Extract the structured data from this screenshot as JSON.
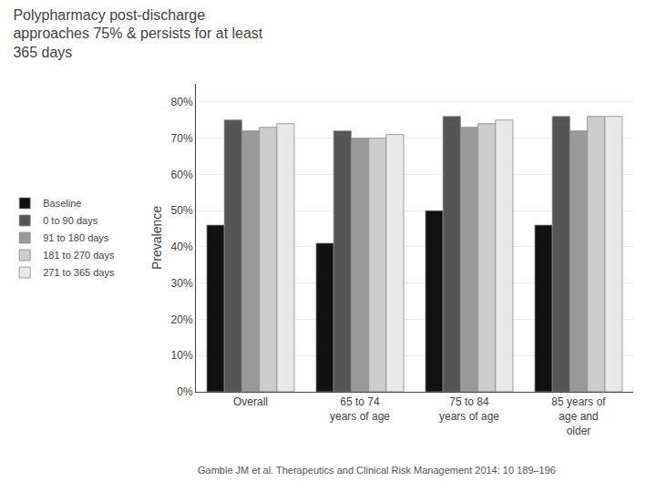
{
  "chart_data": {
    "type": "bar",
    "title": "Polypharmacy post-discharge\napproaches 75% & persists for at least\n365 days",
    "annotations": [
      "Gamble JM et al. Therapeutics and Clinical Risk Management 2014: 10 189–196"
    ],
    "ylabel": "Prevalence",
    "categories": [
      "Overall",
      "65 to 74\nyears of age",
      "75 to 84\nyears of age",
      "85 years of\nage and\nolder"
    ],
    "series": [
      {
        "name": "Baseline",
        "color": "#111111",
        "values": [
          46,
          41,
          50,
          46
        ]
      },
      {
        "name": "0 to 90 days",
        "color": "#555555",
        "values": [
          75,
          72,
          76,
          76
        ]
      },
      {
        "name": "91 to 180 days",
        "color": "#999999",
        "values": [
          72,
          70,
          73,
          72
        ]
      },
      {
        "name": "181 to 270 days",
        "color": "#cccccc",
        "values": [
          73,
          70,
          74,
          76
        ]
      },
      {
        "name": "271 to 365 days",
        "color": "#e8e8e8",
        "values": [
          74,
          71,
          75,
          76
        ]
      }
    ],
    "ylim": [
      0,
      85
    ],
    "yticks": [
      {
        "value": 0,
        "label": "0%"
      },
      {
        "value": 10,
        "label": "10%"
      },
      {
        "value": 20,
        "label": "20%"
      },
      {
        "value": 30,
        "label": "30%"
      },
      {
        "value": 40,
        "label": "40%"
      },
      {
        "value": 50,
        "label": "50%"
      },
      {
        "value": 60,
        "label": "60%"
      },
      {
        "value": 70,
        "label": "70%"
      },
      {
        "value": 80,
        "label": "80%"
      }
    ],
    "grid": true,
    "legend": "left"
  }
}
